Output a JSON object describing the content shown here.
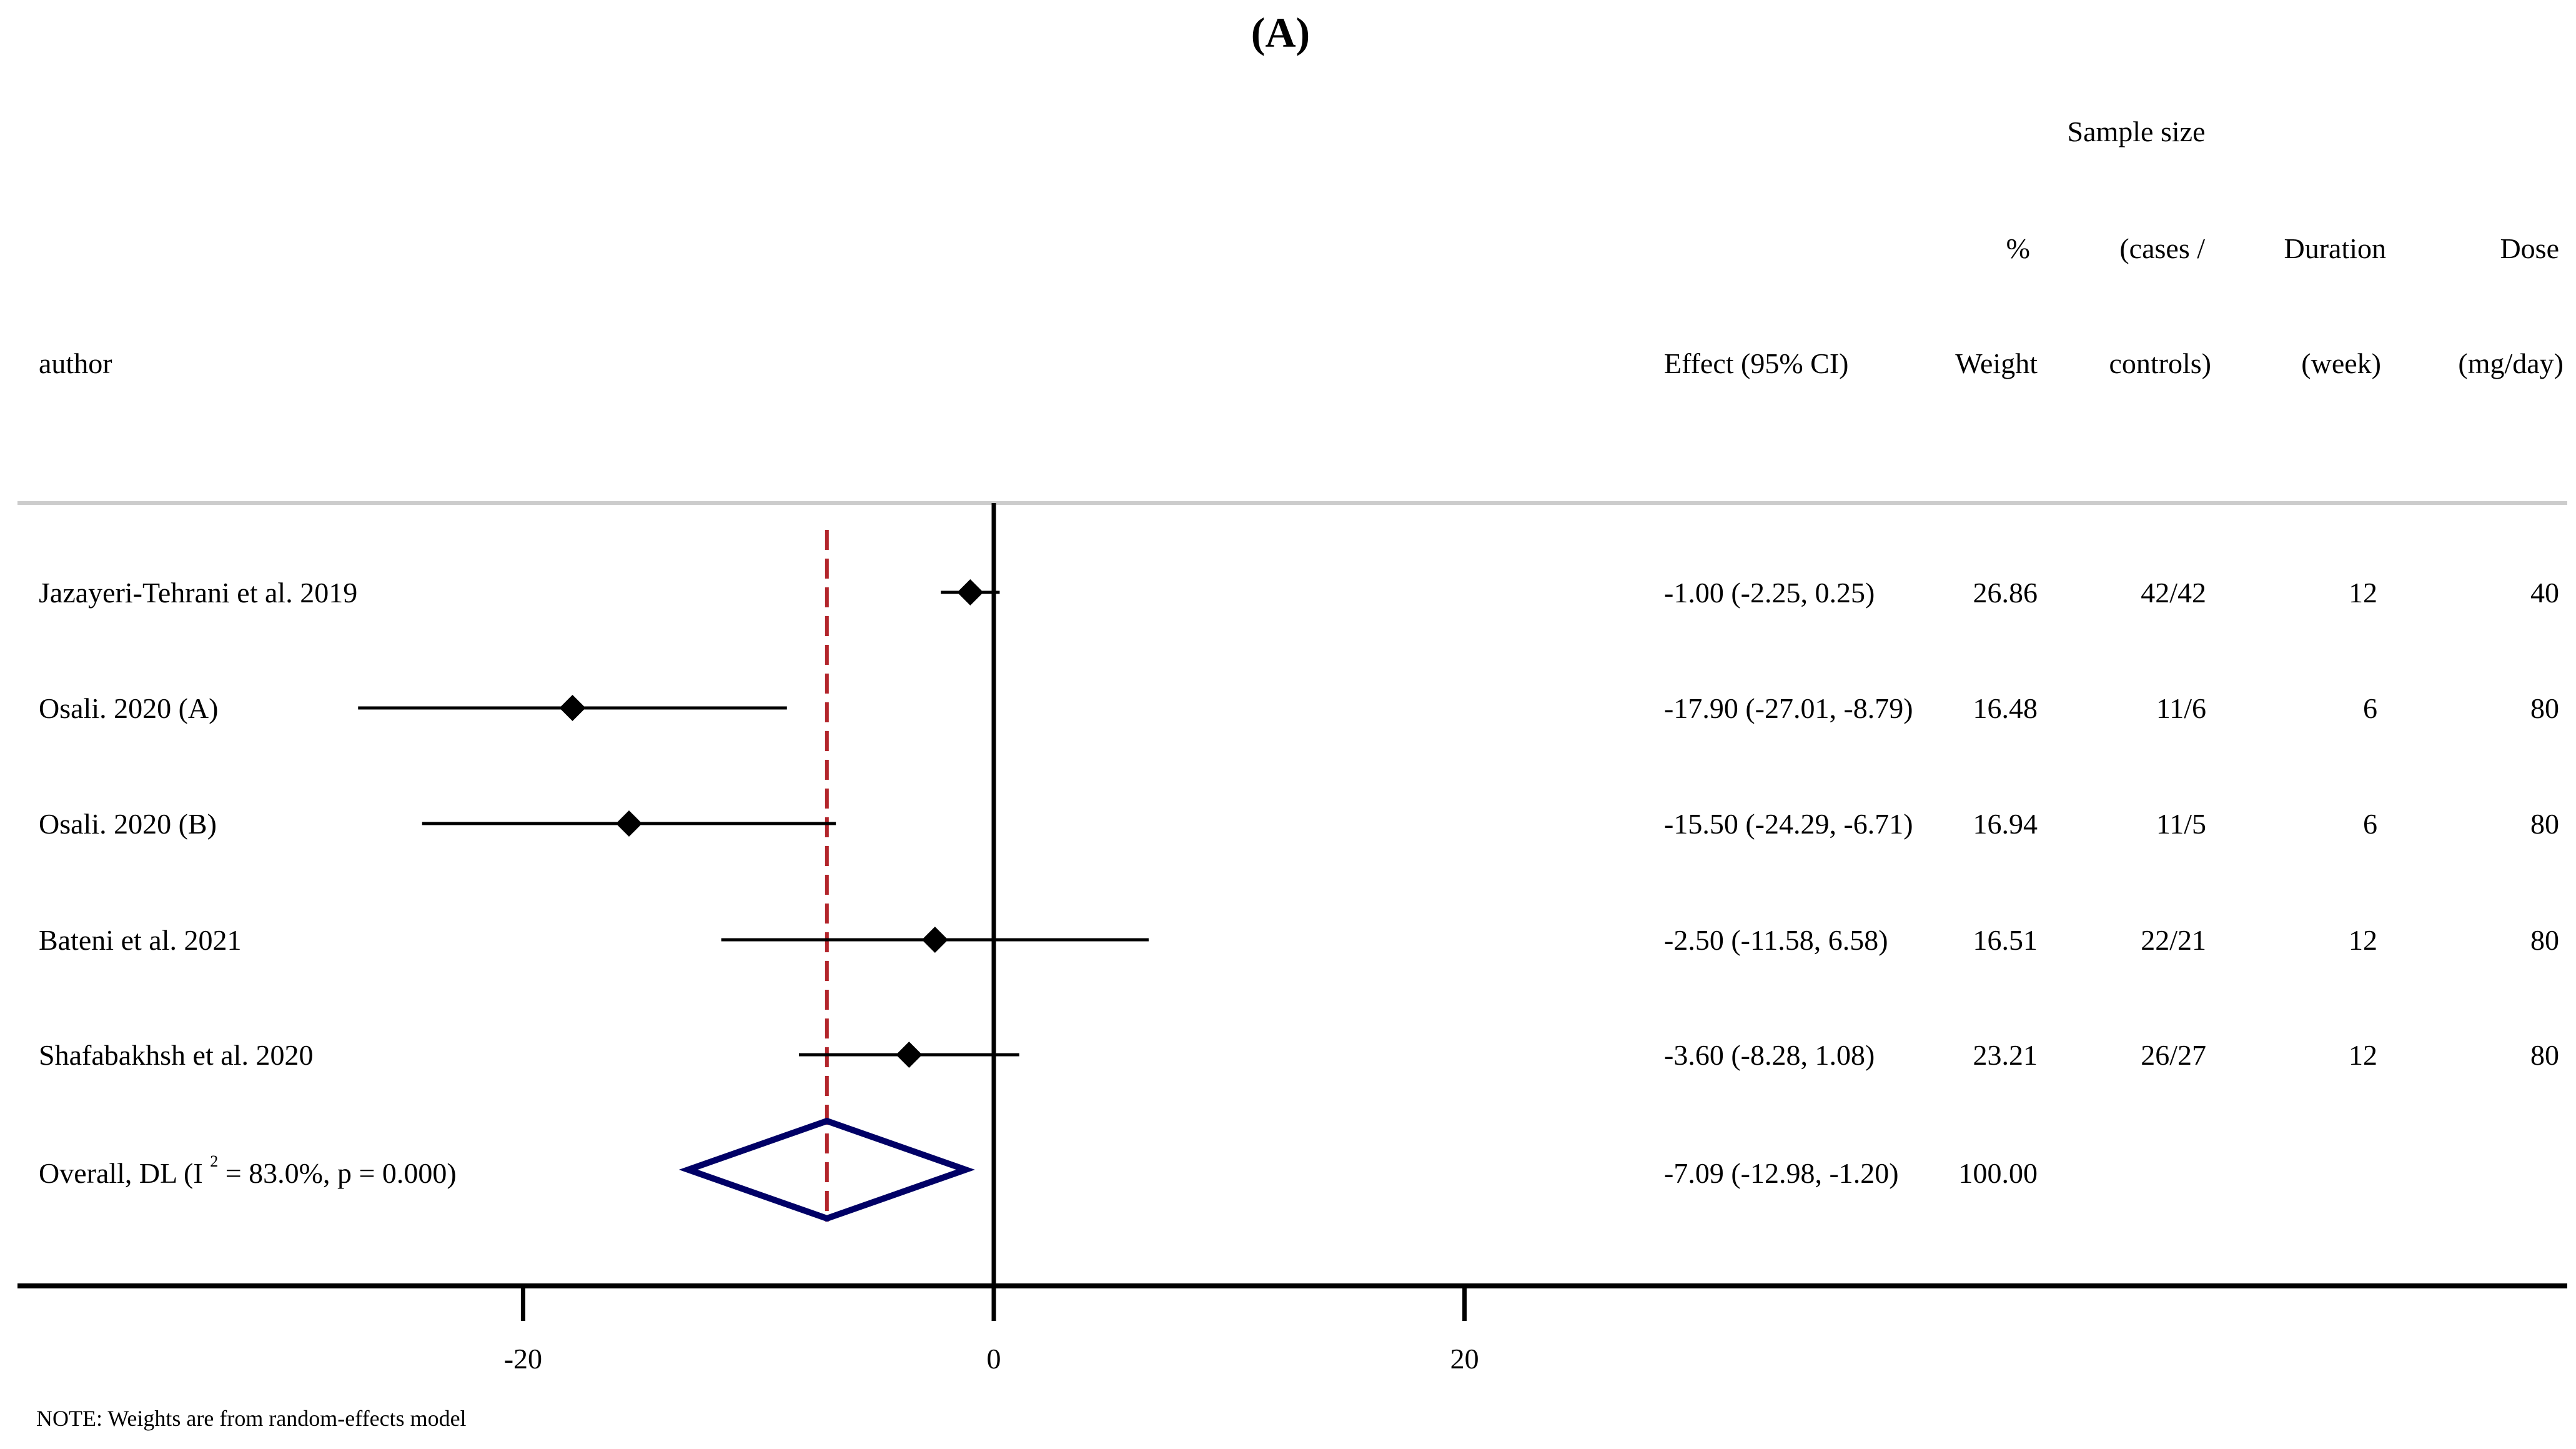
{
  "chart_data": {
    "type": "forest",
    "title": "(A)",
    "header": {
      "author": "author",
      "effect": "Effect (95% CI)",
      "weight_l1": "%",
      "weight_l2": "Weight",
      "sample_l0": "Sample size",
      "sample_l1": "(cases /",
      "sample_l2": "controls)",
      "duration_l1": "Duration",
      "duration_l2": "(week)",
      "dose_l1": "Dose",
      "dose_l2": "(mg/day)"
    },
    "studies": [
      {
        "author": "Jazayeri-Tehrani et al. 2019",
        "effect": -1.0,
        "lower": -2.25,
        "upper": 0.25,
        "effect_text": "-1.00 (-2.25, 0.25)",
        "weight": "26.86",
        "sample": "42/42",
        "duration": "12",
        "dose": "40"
      },
      {
        "author": "Osali. 2020 (A)",
        "effect": -17.9,
        "lower": -27.01,
        "upper": -8.79,
        "effect_text": "-17.90 (-27.01, -8.79)",
        "weight": "16.48",
        "sample": "11/6",
        "duration": "6",
        "dose": "80"
      },
      {
        "author": "Osali. 2020 (B)",
        "effect": -15.5,
        "lower": -24.29,
        "upper": -6.71,
        "effect_text": "-15.50 (-24.29, -6.71)",
        "weight": "16.94",
        "sample": "11/5",
        "duration": "6",
        "dose": "80"
      },
      {
        "author": "Bateni et al. 2021",
        "effect": -2.5,
        "lower": -11.58,
        "upper": 6.58,
        "effect_text": "-2.50 (-11.58, 6.58)",
        "weight": "16.51",
        "sample": "22/21",
        "duration": "12",
        "dose": "80"
      },
      {
        "author": "Shafabakhsh et al. 2020",
        "effect": -3.6,
        "lower": -8.28,
        "upper": 1.08,
        "effect_text": "-3.60 (-8.28, 1.08)",
        "weight": "23.21",
        "sample": "26/27",
        "duration": "12",
        "dose": "80"
      }
    ],
    "overall": {
      "label_pre": "Overall, DL (I",
      "label_sup": "2",
      "label_post": " = 83.0%, p = 0.000)",
      "effect": -7.09,
      "lower": -12.98,
      "upper": -1.2,
      "effect_text": "-7.09 (-12.98, -1.20)",
      "weight": "100.00"
    },
    "x_ticks": [
      -20,
      0,
      20
    ],
    "x_tick_labels": [
      "-20",
      "0",
      "20"
    ],
    "xlim": [
      -41.5,
      66.5
    ],
    "null_line": 0,
    "note": "NOTE: Weights are from random-effects model"
  },
  "colors": {
    "diamond": "#000066",
    "overall_line": "#B2252B",
    "header_rule": "#CCCCCC",
    "marker": "#000000"
  }
}
